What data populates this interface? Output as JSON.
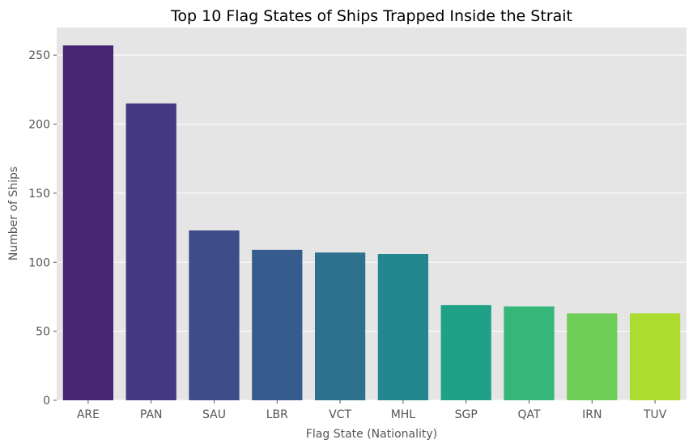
{
  "chart_data": {
    "type": "bar",
    "title": "Top 10 Flag States of Ships Trapped Inside the Strait",
    "xlabel": "Flag State (Nationality)",
    "ylabel": "Number of Ships",
    "categories": [
      "ARE",
      "PAN",
      "SAU",
      "LBR",
      "VCT",
      "MHL",
      "SGP",
      "QAT",
      "IRN",
      "TUV"
    ],
    "values": [
      257,
      215,
      123,
      109,
      107,
      106,
      69,
      68,
      63,
      63
    ],
    "ylim": [
      0,
      270
    ],
    "yticks": [
      0,
      50,
      100,
      150,
      200,
      250
    ],
    "grid": true,
    "colors": [
      "#482475",
      "#453882",
      "#3e4c8a",
      "#365c8d",
      "#2d718e",
      "#24868e",
      "#1fa188",
      "#35b779",
      "#6ece58",
      "#addc30"
    ],
    "background": "#e5e5e5"
  }
}
